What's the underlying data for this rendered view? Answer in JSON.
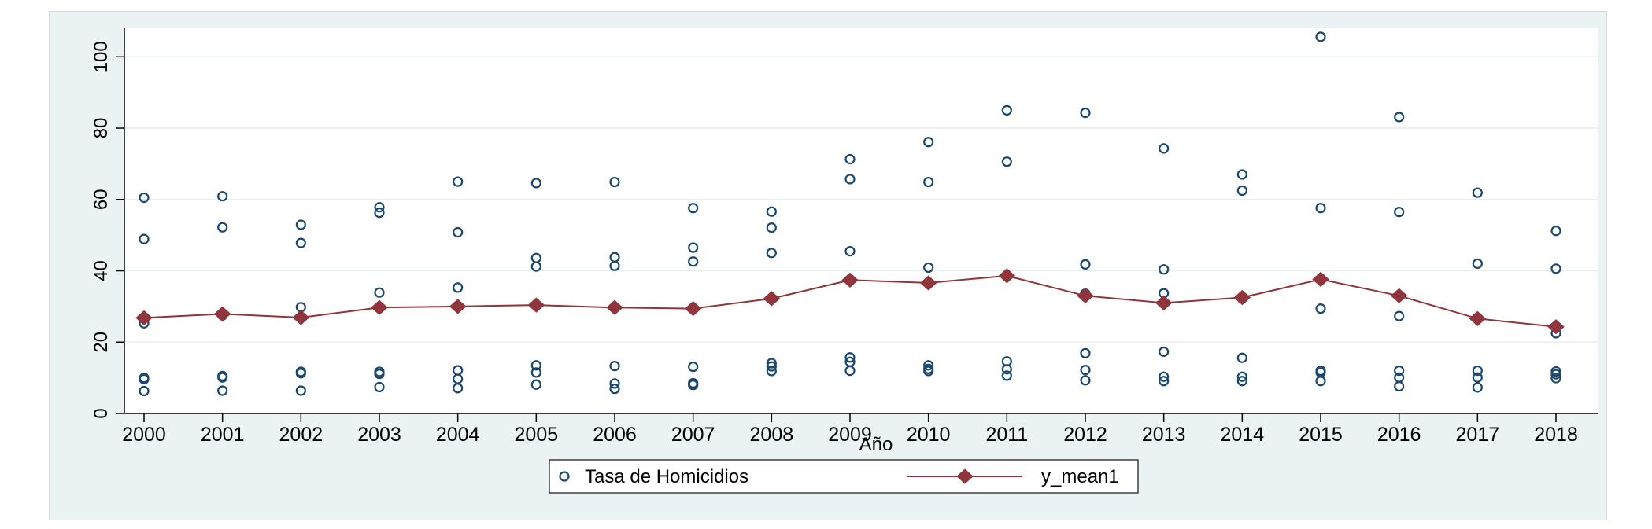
{
  "chart_data": {
    "type": "scatter",
    "xlabel": "Año",
    "ylabel": "",
    "xlim": [
      2000,
      2018
    ],
    "ylim": [
      0,
      108
    ],
    "y_ticks": [
      0,
      20,
      40,
      60,
      80,
      100
    ],
    "x_ticks": [
      2000,
      2001,
      2002,
      2003,
      2004,
      2005,
      2006,
      2007,
      2008,
      2009,
      2010,
      2011,
      2012,
      2013,
      2014,
      2015,
      2016,
      2017,
      2018
    ],
    "grid": "horizontal",
    "legend_position": "bottom",
    "colors": {
      "background": "#eaf2f3",
      "plot_area": "#ffffff",
      "points": "#1a476f",
      "mean_line": "#90353b",
      "grid": "#e6eef0"
    },
    "series": [
      {
        "name": "Tasa de Homicidios",
        "kind": "points",
        "points": [
          {
            "x": 2000,
            "y": 60.5
          },
          {
            "x": 2000,
            "y": 48.9
          },
          {
            "x": 2000,
            "y": 25.3
          },
          {
            "x": 2000,
            "y": 10.0
          },
          {
            "x": 2000,
            "y": 9.6
          },
          {
            "x": 2000,
            "y": 6.3
          },
          {
            "x": 2001,
            "y": 60.9
          },
          {
            "x": 2001,
            "y": 52.2
          },
          {
            "x": 2001,
            "y": 27.5
          },
          {
            "x": 2001,
            "y": 10.5
          },
          {
            "x": 2001,
            "y": 10.1
          },
          {
            "x": 2001,
            "y": 6.4
          },
          {
            "x": 2002,
            "y": 52.9
          },
          {
            "x": 2002,
            "y": 47.8
          },
          {
            "x": 2002,
            "y": 29.8
          },
          {
            "x": 2002,
            "y": 11.7
          },
          {
            "x": 2002,
            "y": 11.3
          },
          {
            "x": 2002,
            "y": 6.4
          },
          {
            "x": 2003,
            "y": 57.8
          },
          {
            "x": 2003,
            "y": 56.3
          },
          {
            "x": 2003,
            "y": 33.9
          },
          {
            "x": 2003,
            "y": 11.7
          },
          {
            "x": 2003,
            "y": 11.1
          },
          {
            "x": 2003,
            "y": 7.4
          },
          {
            "x": 2004,
            "y": 65.0
          },
          {
            "x": 2004,
            "y": 50.8
          },
          {
            "x": 2004,
            "y": 35.3
          },
          {
            "x": 2004,
            "y": 12.1
          },
          {
            "x": 2004,
            "y": 9.7
          },
          {
            "x": 2004,
            "y": 7.1
          },
          {
            "x": 2005,
            "y": 64.6
          },
          {
            "x": 2005,
            "y": 43.6
          },
          {
            "x": 2005,
            "y": 41.2
          },
          {
            "x": 2005,
            "y": 13.5
          },
          {
            "x": 2005,
            "y": 11.5
          },
          {
            "x": 2005,
            "y": 8.1
          },
          {
            "x": 2006,
            "y": 64.9
          },
          {
            "x": 2006,
            "y": 43.8
          },
          {
            "x": 2006,
            "y": 41.4
          },
          {
            "x": 2006,
            "y": 13.3
          },
          {
            "x": 2006,
            "y": 8.4
          },
          {
            "x": 2006,
            "y": 6.9
          },
          {
            "x": 2007,
            "y": 57.6
          },
          {
            "x": 2007,
            "y": 46.5
          },
          {
            "x": 2007,
            "y": 42.6
          },
          {
            "x": 2007,
            "y": 13.1
          },
          {
            "x": 2007,
            "y": 8.5
          },
          {
            "x": 2007,
            "y": 8.0
          },
          {
            "x": 2008,
            "y": 56.6
          },
          {
            "x": 2008,
            "y": 52.1
          },
          {
            "x": 2008,
            "y": 45.0
          },
          {
            "x": 2008,
            "y": 14.1
          },
          {
            "x": 2008,
            "y": 13.2
          },
          {
            "x": 2008,
            "y": 11.9
          },
          {
            "x": 2009,
            "y": 71.3
          },
          {
            "x": 2009,
            "y": 65.7
          },
          {
            "x": 2009,
            "y": 45.5
          },
          {
            "x": 2009,
            "y": 15.7
          },
          {
            "x": 2009,
            "y": 14.5
          },
          {
            "x": 2009,
            "y": 12.0
          },
          {
            "x": 2010,
            "y": 76.1
          },
          {
            "x": 2010,
            "y": 64.9
          },
          {
            "x": 2010,
            "y": 40.9
          },
          {
            "x": 2010,
            "y": 13.5
          },
          {
            "x": 2010,
            "y": 12.5
          },
          {
            "x": 2010,
            "y": 11.9
          },
          {
            "x": 2011,
            "y": 85.0
          },
          {
            "x": 2011,
            "y": 70.6
          },
          {
            "x": 2011,
            "y": 38.5
          },
          {
            "x": 2011,
            "y": 14.6
          },
          {
            "x": 2011,
            "y": 12.4
          },
          {
            "x": 2011,
            "y": 10.6
          },
          {
            "x": 2012,
            "y": 84.3
          },
          {
            "x": 2012,
            "y": 41.8
          },
          {
            "x": 2012,
            "y": 33.6
          },
          {
            "x": 2012,
            "y": 16.9
          },
          {
            "x": 2012,
            "y": 12.2
          },
          {
            "x": 2012,
            "y": 9.3
          },
          {
            "x": 2013,
            "y": 74.3
          },
          {
            "x": 2013,
            "y": 40.4
          },
          {
            "x": 2013,
            "y": 33.7
          },
          {
            "x": 2013,
            "y": 17.3
          },
          {
            "x": 2013,
            "y": 10.3
          },
          {
            "x": 2013,
            "y": 9.1
          },
          {
            "x": 2014,
            "y": 67.0
          },
          {
            "x": 2014,
            "y": 62.5
          },
          {
            "x": 2014,
            "y": 32.2
          },
          {
            "x": 2014,
            "y": 15.6
          },
          {
            "x": 2014,
            "y": 10.3
          },
          {
            "x": 2014,
            "y": 9.1
          },
          {
            "x": 2015,
            "y": 105.6
          },
          {
            "x": 2015,
            "y": 57.6
          },
          {
            "x": 2015,
            "y": 29.4
          },
          {
            "x": 2015,
            "y": 12.0
          },
          {
            "x": 2015,
            "y": 11.5
          },
          {
            "x": 2015,
            "y": 9.1
          },
          {
            "x": 2016,
            "y": 83.1
          },
          {
            "x": 2016,
            "y": 56.5
          },
          {
            "x": 2016,
            "y": 27.3
          },
          {
            "x": 2016,
            "y": 12.0
          },
          {
            "x": 2016,
            "y": 10.1
          },
          {
            "x": 2016,
            "y": 7.6
          },
          {
            "x": 2017,
            "y": 61.9
          },
          {
            "x": 2017,
            "y": 42.0
          },
          {
            "x": 2017,
            "y": 26.8
          },
          {
            "x": 2017,
            "y": 12.0
          },
          {
            "x": 2017,
            "y": 10.1
          },
          {
            "x": 2017,
            "y": 7.3
          },
          {
            "x": 2018,
            "y": 51.2
          },
          {
            "x": 2018,
            "y": 40.6
          },
          {
            "x": 2018,
            "y": 22.5
          },
          {
            "x": 2018,
            "y": 11.8
          },
          {
            "x": 2018,
            "y": 11.0
          },
          {
            "x": 2018,
            "y": 9.9
          }
        ]
      },
      {
        "name": "y_mean1",
        "kind": "line",
        "x": [
          2000,
          2001,
          2002,
          2003,
          2004,
          2005,
          2006,
          2007,
          2008,
          2009,
          2010,
          2011,
          2012,
          2013,
          2014,
          2015,
          2016,
          2017,
          2018
        ],
        "values": [
          26.8,
          27.9,
          26.9,
          29.7,
          30.0,
          30.4,
          29.7,
          29.4,
          32.2,
          37.4,
          36.6,
          38.6,
          33.0,
          31.0,
          32.5,
          37.6,
          33.0,
          26.6,
          24.3
        ]
      }
    ]
  }
}
